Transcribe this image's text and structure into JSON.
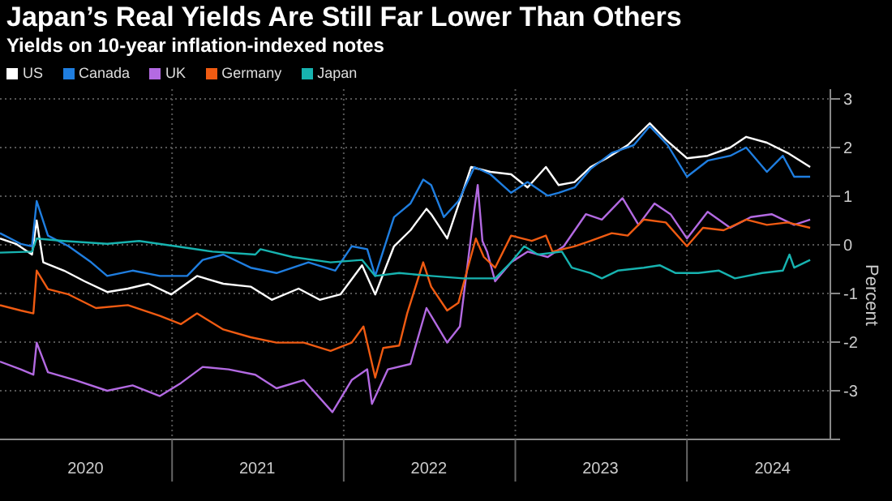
{
  "chart_data": {
    "type": "line",
    "title": "Japan’s Real Yields Are Still Far Lower Than Others",
    "subtitle": "Yields on 10-year inflation-indexed notes",
    "ylabel": "Percent",
    "legend": "top left",
    "grid": true,
    "xlim": [
      "2020-01-01",
      "2024-11-01"
    ],
    "xticks": [
      {
        "value": "2020-07-01",
        "label": "2020"
      },
      {
        "value": "2021-01-01",
        "label": null
      },
      {
        "value": "2021-07-01",
        "label": "2021"
      },
      {
        "value": "2022-01-01",
        "label": null
      },
      {
        "value": "2022-07-01",
        "label": "2022"
      },
      {
        "value": "2023-01-01",
        "label": null
      },
      {
        "value": "2023-07-01",
        "label": "2023"
      },
      {
        "value": "2024-01-01",
        "label": null
      },
      {
        "value": "2024-07-01",
        "label": "2024"
      }
    ],
    "ylim": [
      -4,
      3.2
    ],
    "yticks": [
      {
        "value": -4,
        "label": null
      },
      -3,
      -2,
      -1,
      0,
      1,
      2,
      3
    ],
    "series": [
      {
        "name": "US",
        "color": "#ffffff",
        "x": [
          "2020-01-01",
          "2020-02-04",
          "2020-03-09",
          "2020-03-19",
          "2020-04-02",
          "2020-05-16",
          "2020-06-29",
          "2020-08-16",
          "2020-09-29",
          "2020-11-12",
          "2020-12-30",
          "2021-02-23",
          "2021-04-20",
          "2021-06-17",
          "2021-08-01",
          "2021-09-27",
          "2021-11-11",
          "2021-12-25",
          "2022-02-09",
          "2022-03-09",
          "2022-04-18",
          "2022-05-23",
          "2022-06-26",
          "2022-07-06",
          "2022-08-09",
          "2022-09-29",
          "2022-11-09",
          "2022-12-23",
          "2023-01-27",
          "2023-03-07",
          "2023-04-03",
          "2023-05-07",
          "2023-06-10",
          "2023-07-14",
          "2023-08-28",
          "2023-10-14",
          "2023-11-17",
          "2024-01-01",
          "2024-02-14",
          "2024-04-02",
          "2024-05-06",
          "2024-06-19",
          "2024-08-02",
          "2024-09-19"
        ],
        "values": [
          0.13,
          0.02,
          -0.2,
          0.5,
          -0.36,
          -0.53,
          -0.75,
          -0.97,
          -0.9,
          -0.8,
          -1.02,
          -0.64,
          -0.8,
          -0.86,
          -1.13,
          -0.9,
          -1.13,
          -1.02,
          -0.42,
          -1.02,
          -0.03,
          0.3,
          0.74,
          0.63,
          0.13,
          1.6,
          1.5,
          1.45,
          1.18,
          1.6,
          1.23,
          1.29,
          1.6,
          1.78,
          2.05,
          2.5,
          2.16,
          1.78,
          1.83,
          2.0,
          2.22,
          2.1,
          1.89,
          1.6
        ]
      },
      {
        "name": "Canada",
        "color": "#1f7ee0",
        "x": [
          "2020-01-01",
          "2020-02-14",
          "2020-03-09",
          "2020-03-19",
          "2020-04-12",
          "2020-05-26",
          "2020-07-13",
          "2020-08-16",
          "2020-10-09",
          "2020-12-06",
          "2021-02-02",
          "2021-03-07",
          "2021-04-20",
          "2021-06-17",
          "2021-08-11",
          "2021-10-18",
          "2021-12-14",
          "2022-01-18",
          "2022-02-20",
          "2022-03-09",
          "2022-04-18",
          "2022-05-23",
          "2022-06-19",
          "2022-07-06",
          "2022-08-02",
          "2022-09-02",
          "2022-10-06",
          "2022-11-09",
          "2022-12-23",
          "2023-01-27",
          "2023-03-11",
          "2023-04-03",
          "2023-05-07",
          "2023-06-10",
          "2023-07-25",
          "2023-09-10",
          "2023-10-14",
          "2023-11-21",
          "2024-01-01",
          "2024-02-14",
          "2024-04-02",
          "2024-05-06",
          "2024-06-19",
          "2024-07-23",
          "2024-08-16",
          "2024-09-19"
        ],
        "values": [
          0.24,
          0.02,
          -0.03,
          0.9,
          0.19,
          -0.03,
          -0.36,
          -0.64,
          -0.53,
          -0.64,
          -0.64,
          -0.31,
          -0.2,
          -0.47,
          -0.58,
          -0.36,
          -0.53,
          -0.03,
          -0.09,
          -0.64,
          0.57,
          0.85,
          1.34,
          1.23,
          0.57,
          0.9,
          1.6,
          1.45,
          1.07,
          1.29,
          1.01,
          1.07,
          1.18,
          1.56,
          1.89,
          2.05,
          2.44,
          2.05,
          1.4,
          1.73,
          1.83,
          2.0,
          1.5,
          1.83,
          1.4,
          1.4
        ]
      },
      {
        "name": "UK",
        "color": "#b36ae2",
        "x": [
          "2020-01-01",
          "2020-02-14",
          "2020-03-12",
          "2020-03-19",
          "2020-04-12",
          "2020-06-09",
          "2020-08-16",
          "2020-10-09",
          "2020-12-06",
          "2021-01-20",
          "2021-03-07",
          "2021-05-01",
          "2021-06-27",
          "2021-08-11",
          "2021-10-08",
          "2021-12-08",
          "2022-01-18",
          "2022-02-20",
          "2022-03-02",
          "2022-04-05",
          "2022-05-23",
          "2022-06-26",
          "2022-07-06",
          "2022-08-09",
          "2022-09-05",
          "2022-09-22",
          "2022-10-06",
          "2022-10-13",
          "2022-10-23",
          "2022-11-02",
          "2022-11-19",
          "2022-12-23",
          "2023-01-27",
          "2023-03-11",
          "2023-04-14",
          "2023-05-31",
          "2023-07-04",
          "2023-08-17",
          "2023-09-20",
          "2023-10-24",
          "2023-11-27",
          "2024-01-01",
          "2024-02-14",
          "2024-04-02",
          "2024-05-16",
          "2024-06-29",
          "2024-08-16",
          "2024-09-19"
        ],
        "values": [
          -2.4,
          -2.56,
          -2.67,
          -2.01,
          -2.62,
          -2.78,
          -3.0,
          -2.89,
          -3.11,
          -2.84,
          -2.51,
          -2.56,
          -2.67,
          -2.95,
          -2.78,
          -3.44,
          -2.78,
          -2.56,
          -3.27,
          -2.56,
          -2.45,
          -1.3,
          -1.46,
          -2.01,
          -1.68,
          -0.36,
          0.74,
          1.23,
          0.08,
          -0.14,
          -0.75,
          -0.36,
          -0.14,
          -0.25,
          -0.03,
          0.63,
          0.52,
          0.96,
          0.41,
          0.85,
          0.63,
          0.13,
          0.68,
          0.35,
          0.57,
          0.63,
          0.41,
          0.52
        ]
      },
      {
        "name": "Germany",
        "color": "#f05b12",
        "x": [
          "2020-01-01",
          "2020-02-14",
          "2020-03-12",
          "2020-03-19",
          "2020-04-12",
          "2020-05-26",
          "2020-07-23",
          "2020-09-29",
          "2020-12-06",
          "2021-01-20",
          "2021-02-23",
          "2021-04-20",
          "2021-06-17",
          "2021-08-11",
          "2021-10-08",
          "2021-12-04",
          "2022-01-18",
          "2022-02-12",
          "2022-03-09",
          "2022-03-26",
          "2022-04-29",
          "2022-05-16",
          "2022-06-19",
          "2022-07-06",
          "2022-08-09",
          "2022-09-02",
          "2022-09-22",
          "2022-10-09",
          "2022-10-26",
          "2022-11-19",
          "2022-12-23",
          "2023-02-05",
          "2023-03-07",
          "2023-03-21",
          "2023-05-07",
          "2023-06-10",
          "2023-07-25",
          "2023-08-28",
          "2023-10-01",
          "2023-11-17",
          "2024-01-01",
          "2024-02-04",
          "2024-03-19",
          "2024-05-06",
          "2024-06-19",
          "2024-08-02",
          "2024-09-19"
        ],
        "values": [
          -1.24,
          -1.35,
          -1.41,
          -0.53,
          -0.91,
          -1.02,
          -1.3,
          -1.24,
          -1.46,
          -1.63,
          -1.41,
          -1.74,
          -1.9,
          -2.01,
          -2.01,
          -2.18,
          -2.01,
          -1.68,
          -2.73,
          -2.12,
          -2.07,
          -1.41,
          -0.36,
          -0.86,
          -1.35,
          -1.19,
          -0.47,
          0.13,
          -0.25,
          -0.47,
          0.19,
          0.08,
          0.19,
          -0.14,
          -0.03,
          0.08,
          0.24,
          0.19,
          0.52,
          0.46,
          -0.03,
          0.35,
          0.3,
          0.52,
          0.41,
          0.46,
          0.35
        ]
      },
      {
        "name": "Japan",
        "color": "#17b3b0",
        "x": [
          "2020-01-01",
          "2020-03-09",
          "2020-03-19",
          "2020-05-16",
          "2020-08-16",
          "2020-10-23",
          "2021-01-09",
          "2021-03-28",
          "2021-06-27",
          "2021-07-08",
          "2021-09-14",
          "2021-12-04",
          "2022-02-09",
          "2022-03-09",
          "2022-04-29",
          "2022-07-06",
          "2022-09-12",
          "2022-11-19",
          "2022-12-23",
          "2023-01-20",
          "2023-02-18",
          "2023-04-10",
          "2023-05-01",
          "2023-06-10",
          "2023-07-04",
          "2023-08-07",
          "2023-10-01",
          "2023-11-04",
          "2023-12-08",
          "2024-01-25",
          "2024-03-09",
          "2024-04-12",
          "2024-06-09",
          "2024-07-23",
          "2024-08-06",
          "2024-08-16",
          "2024-09-19"
        ],
        "values": [
          -0.16,
          -0.14,
          0.13,
          0.08,
          0.02,
          0.08,
          -0.03,
          -0.14,
          -0.2,
          -0.09,
          -0.25,
          -0.36,
          -0.31,
          -0.64,
          -0.58,
          -0.64,
          -0.69,
          -0.69,
          -0.36,
          -0.03,
          -0.2,
          -0.14,
          -0.47,
          -0.58,
          -0.69,
          -0.53,
          -0.47,
          -0.42,
          -0.58,
          -0.58,
          -0.53,
          -0.69,
          -0.58,
          -0.53,
          -0.2,
          -0.47,
          -0.31
        ]
      }
    ]
  }
}
